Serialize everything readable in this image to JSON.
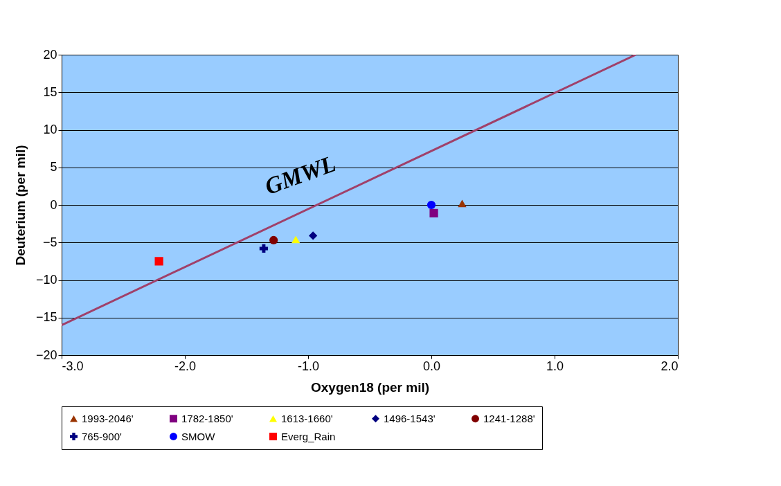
{
  "chart_data": {
    "type": "scatter",
    "xlabel": "Oxygen18 (per mil)",
    "ylabel": "Deuterium (per mil)",
    "xlim": [
      -3.0,
      2.0
    ],
    "ylim": [
      -20,
      20
    ],
    "xticks": [
      {
        "value": -3,
        "label": "-3.0"
      },
      {
        "value": -2,
        "label": "-2.0"
      },
      {
        "value": -1,
        "label": "-1.0"
      },
      {
        "value": 0,
        "label": "0.0"
      },
      {
        "value": 1,
        "label": "1.0"
      },
      {
        "value": 2,
        "label": "2.0"
      }
    ],
    "yticks": [
      -20,
      -15,
      -10,
      -5,
      0,
      5,
      10,
      15,
      20
    ],
    "grid": "y",
    "legend": "bottom",
    "annotations": [
      "GMWL"
    ],
    "series": [
      {
        "name": "1993-2046'",
        "color": "#993300",
        "marker": "triangle",
        "x": [
          0.25
        ],
        "values": [
          0.2
        ]
      },
      {
        "name": "1782-1850'",
        "color": "#800080",
        "marker": "square",
        "x": [
          0.02
        ],
        "values": [
          -1.1
        ]
      },
      {
        "name": "1613-1660'",
        "color": "#ffff00",
        "marker": "triangle",
        "x": [
          -1.1
        ],
        "values": [
          -4.6
        ]
      },
      {
        "name": "1496-1543'",
        "color": "#000080",
        "marker": "diamond",
        "x": [
          -0.96
        ],
        "values": [
          -4.1
        ]
      },
      {
        "name": "1241-1288'",
        "color": "#800000",
        "marker": "circle",
        "x": [
          -1.28
        ],
        "values": [
          -4.7
        ]
      },
      {
        "name": "765-900'",
        "color": "#000080",
        "marker": "cross",
        "x": [
          -1.36
        ],
        "values": [
          -5.8
        ]
      },
      {
        "name": "SMOW",
        "color": "#0000ff",
        "marker": "circle",
        "x": [
          0.0
        ],
        "values": [
          0.0
        ]
      },
      {
        "name": "Everg_Rain",
        "color": "#ff0000",
        "marker": "square",
        "x": [
          -2.21
        ],
        "values": [
          -7.5
        ]
      },
      {
        "type": "line",
        "color": "#a0406a",
        "line_style": "solid",
        "x": [
          -3.0,
          1.66
        ],
        "values": [
          -16,
          20
        ]
      }
    ]
  }
}
